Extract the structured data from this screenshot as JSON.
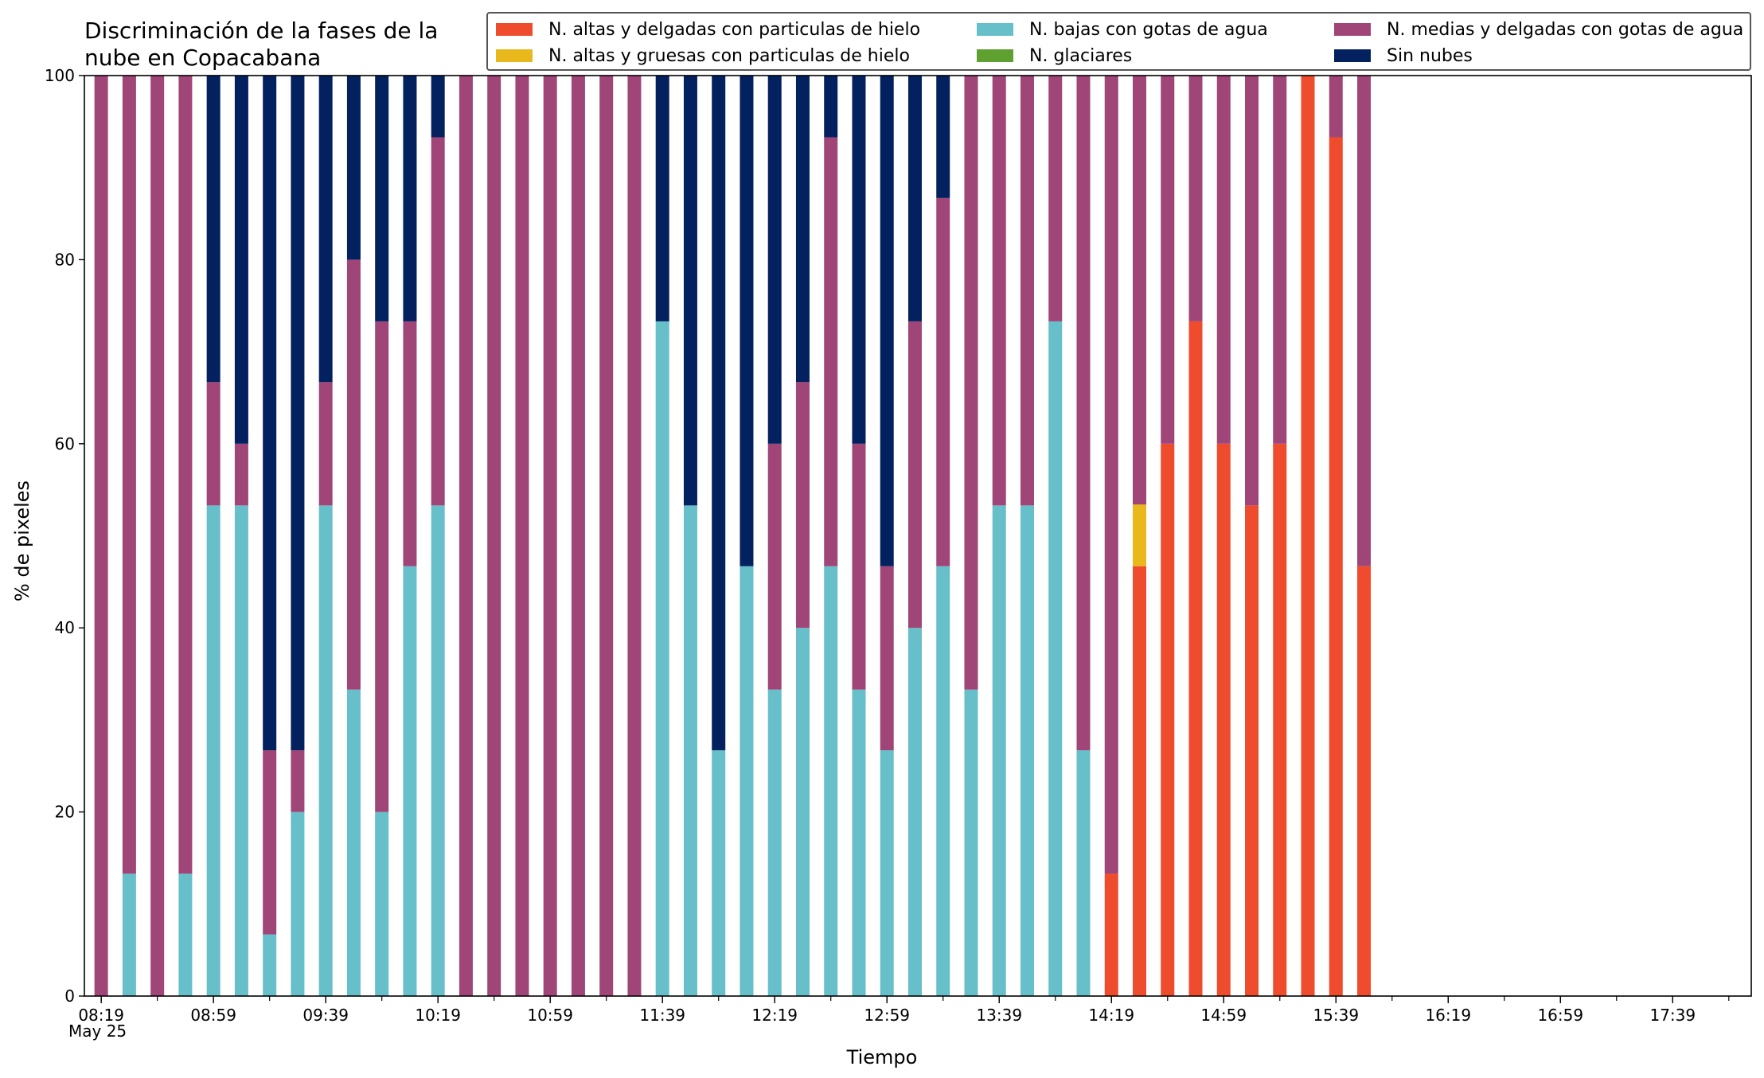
{
  "chart_data": {
    "type": "bar",
    "stacked": true,
    "title": "Discriminación de la fases de la\nnube en Copacabana",
    "xlabel": "Tiempo",
    "ylabel": "% de pixeles",
    "ylim": [
      0,
      100
    ],
    "yticks": [
      0,
      20,
      40,
      60,
      80,
      100
    ],
    "xlim": [
      "08:13",
      "18:07"
    ],
    "date_label": "May 25",
    "xtick_labels": [
      "08:19",
      "08:59",
      "09:39",
      "10:19",
      "10:59",
      "11:39",
      "12:19",
      "12:59",
      "13:39",
      "14:19",
      "14:59",
      "15:39",
      "16:19",
      "16:59",
      "17:39"
    ],
    "x": [
      "08:19",
      "08:29",
      "08:39",
      "08:49",
      "08:59",
      "09:09",
      "09:19",
      "09:29",
      "09:39",
      "09:49",
      "09:59",
      "10:09",
      "10:19",
      "10:29",
      "10:39",
      "10:49",
      "10:59",
      "11:09",
      "11:19",
      "11:29",
      "11:39",
      "11:49",
      "11:59",
      "12:09",
      "12:19",
      "12:29",
      "12:39",
      "12:49",
      "12:59",
      "13:09",
      "13:19",
      "13:29",
      "13:39",
      "13:49",
      "13:59",
      "14:09",
      "14:19",
      "14:29",
      "14:39",
      "14:49",
      "14:59",
      "15:09",
      "15:19",
      "15:29",
      "15:39",
      "15:49"
    ],
    "series": [
      {
        "name": "N. altas y delgadas con particulas de hielo",
        "color": "#ee4c2c",
        "values": [
          0,
          0,
          0,
          0,
          0,
          0,
          0,
          0,
          0,
          0,
          0,
          0,
          0,
          0,
          0,
          0,
          0,
          0,
          0,
          0,
          0,
          0,
          0,
          0,
          0,
          0,
          0,
          0,
          0,
          0,
          0,
          0,
          0,
          0,
          0,
          0,
          13.3,
          46.7,
          60,
          73.3,
          60,
          53.3,
          60,
          100,
          93.3,
          46.7
        ]
      },
      {
        "name": "N. altas y gruesas con particulas de hielo",
        "color": "#e8b81d",
        "values": [
          0,
          0,
          0,
          0,
          0,
          0,
          0,
          0,
          0,
          0,
          0,
          0,
          0,
          0,
          0,
          0,
          0,
          0,
          0,
          0,
          0,
          0,
          0,
          0,
          0,
          0,
          0,
          0,
          0,
          0,
          0,
          0,
          0,
          0,
          0,
          0,
          0,
          6.7,
          0,
          0,
          0,
          0,
          0,
          0,
          0,
          0
        ]
      },
      {
        "name": "N. bajas con gotas de agua",
        "color": "#66bfc9",
        "values": [
          0,
          13.3,
          0,
          13.3,
          53.3,
          53.3,
          6.7,
          20,
          53.3,
          33.3,
          20,
          46.7,
          53.3,
          0,
          0,
          0,
          0,
          0,
          0,
          0,
          73.3,
          53.3,
          26.7,
          46.7,
          33.3,
          40,
          46.7,
          33.3,
          26.7,
          40,
          46.7,
          33.3,
          53.3,
          53.3,
          73.3,
          26.7,
          0,
          0,
          0,
          0,
          0,
          0,
          0,
          0,
          0,
          0
        ]
      },
      {
        "name": "N. glaciares",
        "color": "#5ea130",
        "values": [
          0,
          0,
          0,
          0,
          0,
          0,
          0,
          0,
          0,
          0,
          0,
          0,
          0,
          0,
          0,
          0,
          0,
          0,
          0,
          0,
          0,
          0,
          0,
          0,
          0,
          0,
          0,
          0,
          0,
          0,
          0,
          0,
          0,
          0,
          0,
          0,
          0,
          0,
          0,
          0,
          0,
          0,
          0,
          0,
          0,
          0
        ]
      },
      {
        "name": "N. medias y delgadas con gotas de agua",
        "color": "#a04577",
        "values": [
          100,
          86.7,
          100,
          86.7,
          13.4,
          6.7,
          20,
          6.7,
          13.4,
          46.7,
          53.3,
          26.6,
          40,
          100,
          100,
          100,
          100,
          100,
          100,
          100,
          0,
          0,
          0,
          0,
          26.7,
          26.7,
          46.6,
          26.7,
          20,
          33.3,
          40,
          66.7,
          46.7,
          46.7,
          26.7,
          73.3,
          86.7,
          46.6,
          40,
          26.7,
          40,
          46.7,
          40,
          0,
          6.7,
          53.3
        ]
      },
      {
        "name": "Sin nubes",
        "color": "#03205f",
        "values": [
          0,
          0,
          0,
          0,
          33.3,
          40,
          73.3,
          73.3,
          33.3,
          20,
          26.7,
          26.7,
          6.7,
          0,
          0,
          0,
          0,
          0,
          0,
          0,
          26.7,
          46.7,
          73.3,
          53.3,
          40,
          33.3,
          6.7,
          40,
          53.3,
          26.7,
          13.3,
          0,
          0,
          0,
          0,
          0,
          0,
          0,
          0,
          0,
          0,
          0,
          0,
          0,
          0,
          0
        ]
      }
    ],
    "legend_position": "upper-right",
    "grid": false
  }
}
